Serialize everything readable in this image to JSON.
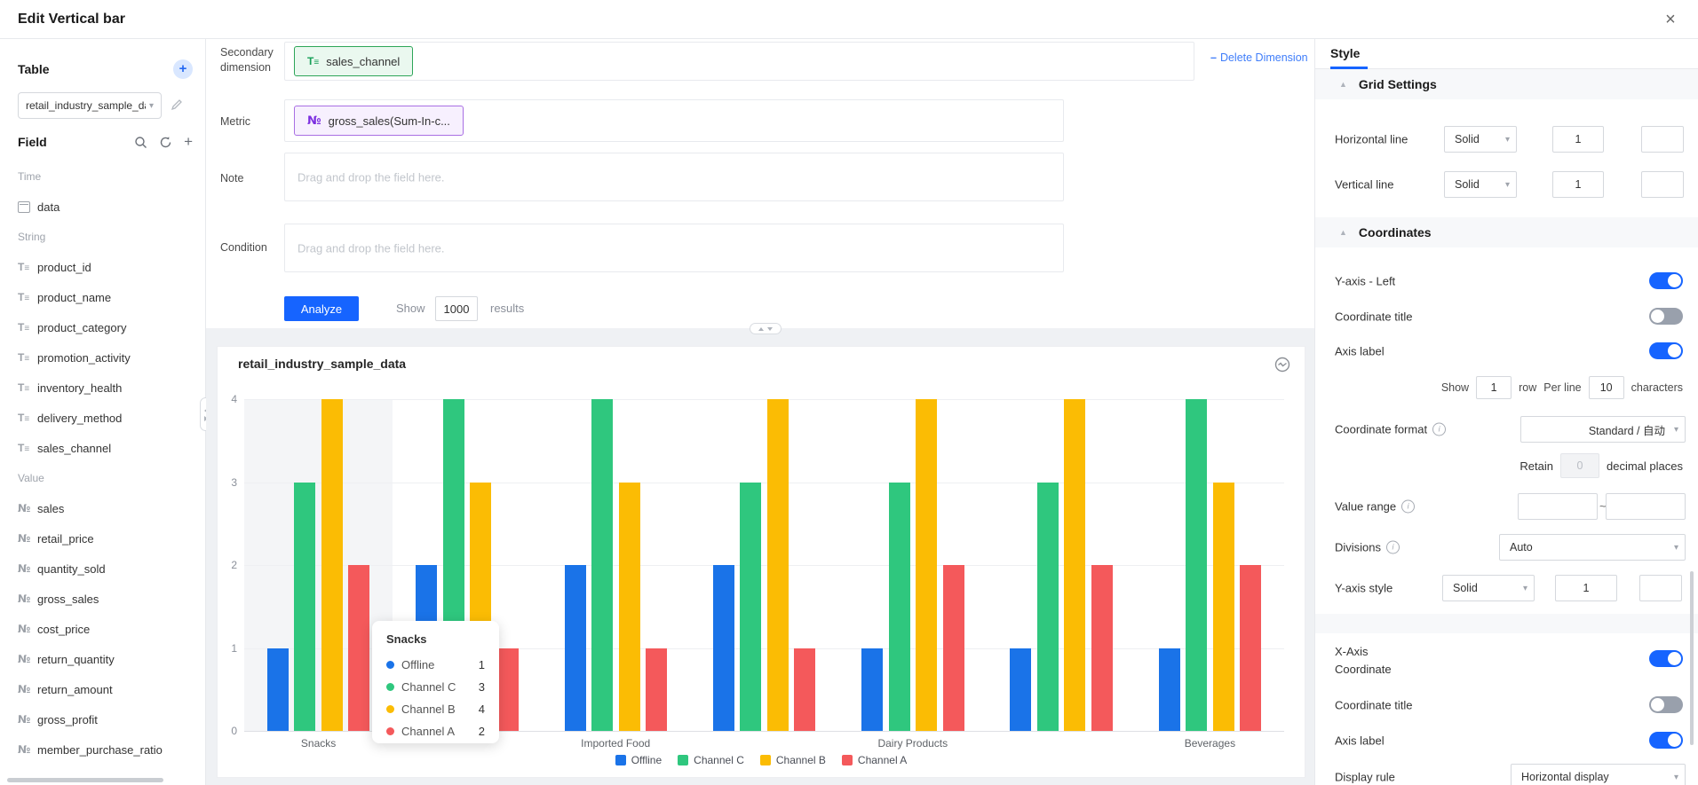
{
  "icons": {
    "close": "×",
    "caret_down": "▾",
    "collapse_up": "▲",
    "plus": "+",
    "minus": "–",
    "info": "i"
  },
  "header": {
    "title": "Edit Vertical bar"
  },
  "sidebar": {
    "table_label": "Table",
    "dataset_value": "retail_industry_sample_dat",
    "field_label": "Field",
    "groups": [
      {
        "label": "Time",
        "items": [
          {
            "name": "data",
            "type": "date"
          }
        ]
      },
      {
        "label": "String",
        "items": [
          {
            "name": "product_id",
            "type": "string"
          },
          {
            "name": "product_name",
            "type": "string"
          },
          {
            "name": "product_category",
            "type": "string"
          },
          {
            "name": "promotion_activity",
            "type": "string"
          },
          {
            "name": "inventory_health",
            "type": "string"
          },
          {
            "name": "delivery_method",
            "type": "string"
          },
          {
            "name": "sales_channel",
            "type": "string"
          }
        ]
      },
      {
        "label": "Value",
        "items": [
          {
            "name": "sales",
            "type": "number"
          },
          {
            "name": "retail_price",
            "type": "number"
          },
          {
            "name": "quantity_sold",
            "type": "number"
          },
          {
            "name": "gross_sales",
            "type": "number"
          },
          {
            "name": "cost_price",
            "type": "number"
          },
          {
            "name": "return_quantity",
            "type": "number"
          },
          {
            "name": "return_amount",
            "type": "number"
          },
          {
            "name": "gross_profit",
            "type": "number"
          },
          {
            "name": "member_purchase_ratio",
            "type": "number"
          }
        ]
      }
    ]
  },
  "query": {
    "secondary_dimension": {
      "label": "Secondary dimension",
      "field": "sales_channel",
      "delete_label": "Delete Dimension"
    },
    "metric": {
      "label": "Metric",
      "field": "gross_sales(Sum-In-c..."
    },
    "note": {
      "label": "Note",
      "placeholder": "Drag and drop the field here."
    },
    "condition": {
      "label": "Condition",
      "placeholder": "Drag and drop the field here."
    },
    "actions": {
      "analyze_label": "Analyze",
      "show_label": "Show",
      "limit_value": "1000",
      "results_label": "results"
    }
  },
  "chart_data": {
    "type": "bar",
    "title": "retail_industry_sample_data",
    "categories": [
      "Snacks",
      "",
      "Imported Food",
      "",
      "Dairy Products",
      "",
      "Beverages"
    ],
    "series": [
      {
        "name": "Offline",
        "color": "#1A73E8",
        "values": [
          1,
          2,
          2,
          2,
          1,
          1,
          1
        ]
      },
      {
        "name": "Channel C",
        "color": "#2FC77E",
        "values": [
          3,
          4,
          4,
          3,
          3,
          3,
          4
        ]
      },
      {
        "name": "Channel B",
        "color": "#FBBC04",
        "values": [
          4,
          3,
          3,
          4,
          4,
          4,
          3
        ]
      },
      {
        "name": "Channel A",
        "color": "#F4595B",
        "values": [
          2,
          1,
          1,
          1,
          2,
          2,
          2
        ]
      }
    ],
    "ylim": [
      0,
      4
    ],
    "yticks": [
      0,
      1,
      2,
      3,
      4
    ],
    "grid": "horizontal",
    "legend_position": "bottom",
    "highlighted_category": "Snacks",
    "tooltip": {
      "title": "Snacks",
      "rows": [
        {
          "series": "Offline",
          "value": "1"
        },
        {
          "series": "Channel C",
          "value": "3"
        },
        {
          "series": "Channel B",
          "value": "4"
        },
        {
          "series": "Channel A",
          "value": "2"
        }
      ]
    }
  },
  "style_panel": {
    "tab_label": "Style",
    "grid": {
      "title": "Grid Settings",
      "horizontal": {
        "label": "Horizontal line",
        "line_style": "Solid",
        "line_width": "1"
      },
      "vertical": {
        "label": "Vertical line",
        "line_style": "Solid",
        "line_width": "1"
      }
    },
    "coordinates": {
      "title": "Coordinates",
      "y_axis_left": {
        "label": "Y-axis - Left",
        "enabled": true
      },
      "coordinate_title": {
        "label": "Coordinate title",
        "enabled": false
      },
      "axis_label": {
        "label": "Axis label",
        "enabled": true
      },
      "axis_label_config": {
        "show_label": "Show",
        "rows_value": "1",
        "row_label": "row",
        "per_line_label": "Per line",
        "chars_value": "10",
        "chars_label": "characters"
      },
      "coordinate_format": {
        "label": "Coordinate format",
        "value": "Standard / 自动"
      },
      "retain": {
        "label": "Retain",
        "value": "0",
        "suffix": "decimal places"
      },
      "value_range": {
        "label": "Value range",
        "min": "",
        "max": "",
        "separator": "~"
      },
      "divisions": {
        "label": "Divisions",
        "value": "Auto"
      },
      "y_axis_style": {
        "label": "Y-axis style",
        "line_style": "Solid",
        "line_width": "1"
      }
    },
    "x_axis": {
      "title_line1": "X-Axis",
      "title_line2": "Coordinate",
      "enabled": true,
      "coordinate_title": {
        "label": "Coordinate title",
        "enabled": false
      },
      "axis_label": {
        "label": "Axis label",
        "enabled": true
      },
      "display_rule": {
        "label": "Display rule",
        "value": "Horizontal display"
      }
    }
  }
}
